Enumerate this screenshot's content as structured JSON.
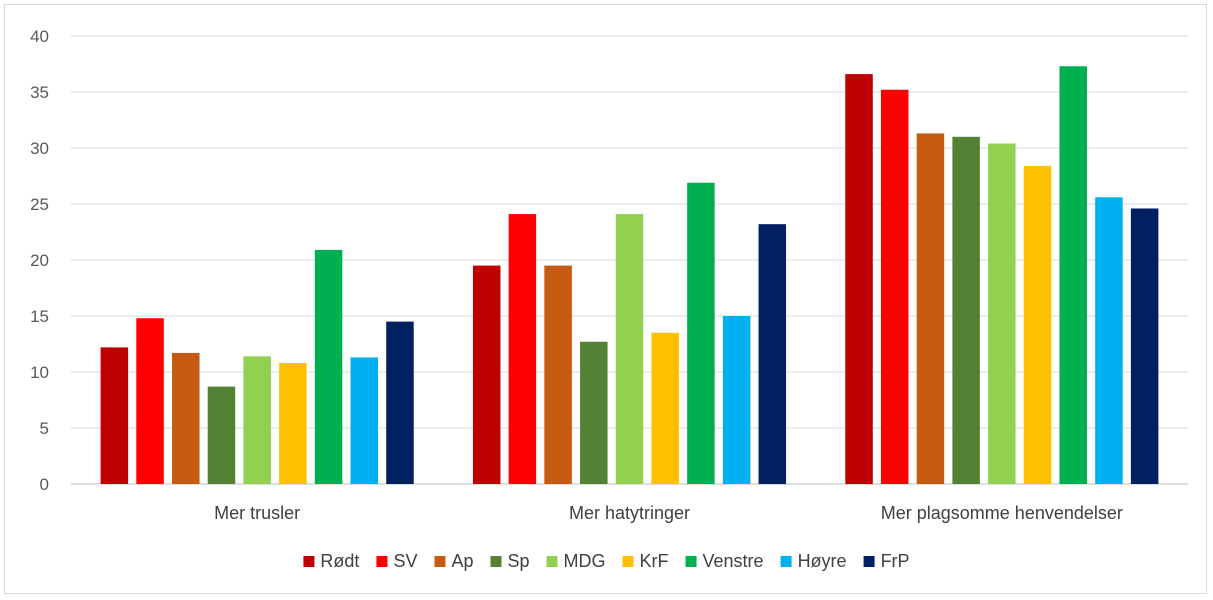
{
  "chart_data": {
    "type": "bar",
    "title": "",
    "xlabel": "",
    "ylabel": "",
    "ylim": [
      0,
      40
    ],
    "yticks": [
      0,
      5,
      10,
      15,
      20,
      25,
      30,
      35,
      40
    ],
    "grid": true,
    "legend_position": "bottom",
    "categories": [
      "Mer trusler",
      "Mer hatytringer",
      "Mer plagsomme henvendelser"
    ],
    "series": [
      {
        "name": "Rødt",
        "color": "#c00000",
        "values": [
          12.2,
          19.5,
          36.6
        ]
      },
      {
        "name": "SV",
        "color": "#ff0000",
        "values": [
          14.8,
          24.1,
          35.2
        ]
      },
      {
        "name": "Ap",
        "color": "#c55a11",
        "values": [
          11.7,
          19.5,
          31.3
        ]
      },
      {
        "name": "Sp",
        "color": "#548235",
        "values": [
          8.7,
          12.7,
          31.0
        ]
      },
      {
        "name": "MDG",
        "color": "#92d050",
        "values": [
          11.4,
          24.1,
          30.4
        ]
      },
      {
        "name": "KrF",
        "color": "#ffc000",
        "values": [
          10.8,
          13.5,
          28.4
        ]
      },
      {
        "name": "Venstre",
        "color": "#00b050",
        "values": [
          20.9,
          26.9,
          37.3
        ]
      },
      {
        "name": "Høyre",
        "color": "#00b0f0",
        "values": [
          11.3,
          15.0,
          25.6
        ]
      },
      {
        "name": "FrP",
        "color": "#002060",
        "values": [
          14.5,
          23.2,
          24.6
        ]
      }
    ]
  }
}
